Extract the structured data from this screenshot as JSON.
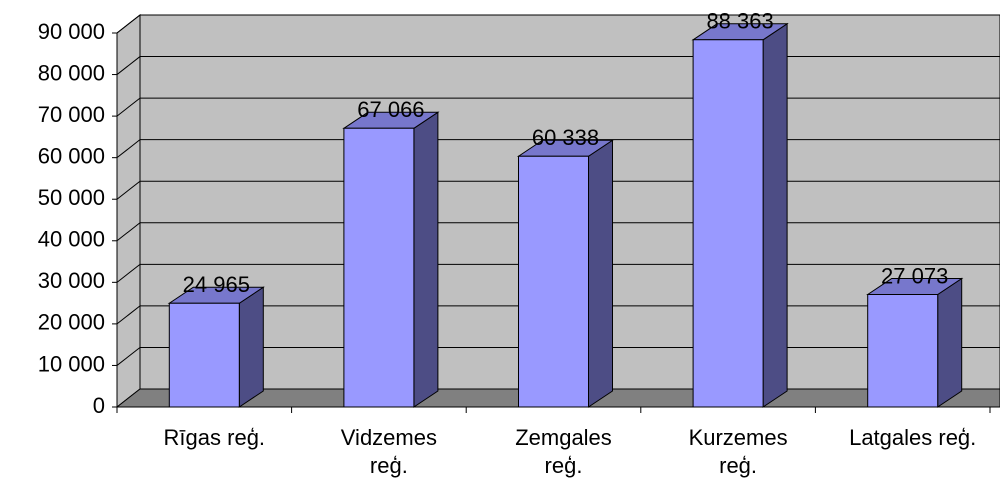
{
  "chart_data": {
    "type": "bar3d",
    "categories": [
      "Rīgas reģ.",
      "Vidzemes reģ.",
      "Zemgales reģ.",
      "Kurzemes reģ.",
      "Latgales reģ."
    ],
    "values": [
      24965,
      67066,
      60338,
      88363,
      27073
    ],
    "value_labels": [
      "24 965",
      "67 066",
      "60 338",
      "88 363",
      "27 073"
    ],
    "color": "#9999ff",
    "ylim": [
      0,
      90000
    ],
    "yticks": [
      0,
      {
        "value": 10000,
        "label": "10 000"
      },
      {
        "value": 20000,
        "label": "20 000"
      },
      {
        "value": 30000,
        "label": "30 000"
      },
      {
        "value": 40000,
        "label": "40 000"
      },
      {
        "value": 50000,
        "label": "50 000"
      },
      {
        "value": 60000,
        "label": "60 000"
      },
      {
        "value": 70000,
        "label": "70 000"
      },
      {
        "value": 80000,
        "label": "80 000"
      },
      {
        "value": 90000,
        "label": "90 000"
      }
    ],
    "grid": true
  }
}
